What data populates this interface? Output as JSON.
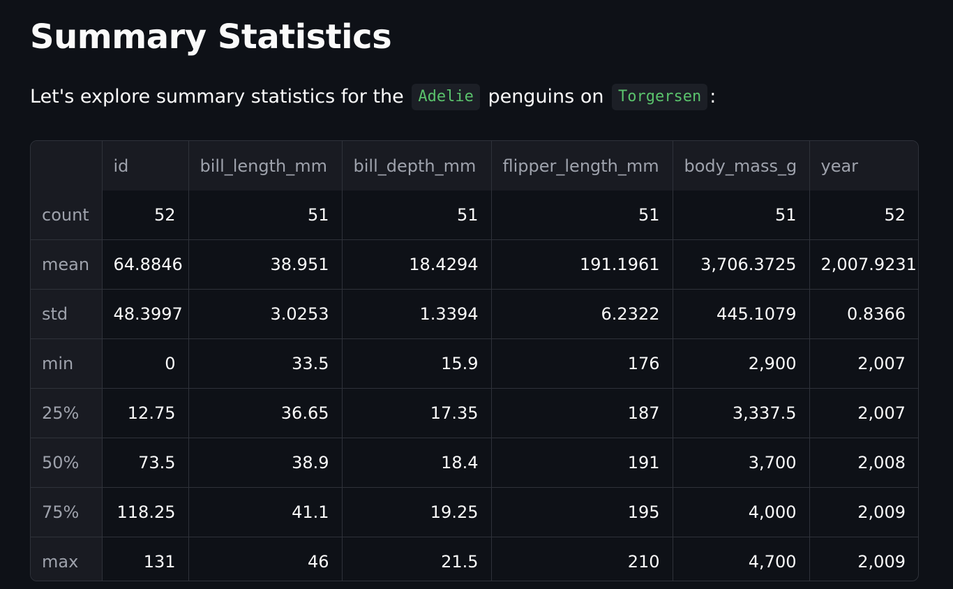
{
  "page": {
    "title": "Summary Statistics",
    "intro": {
      "prefix": "Let's explore summary statistics for the",
      "species": "Adelie",
      "middle": "penguins on",
      "island": "Torgersen",
      "suffix": ":"
    }
  },
  "colors": {
    "background": "#0e1117",
    "chip_text": "#5ac26c",
    "chip_background": "#1c1f26",
    "header_background": "#191b22",
    "grid_line": "#2f323a"
  },
  "table": {
    "columns": [
      "",
      "id",
      "bill_length_mm",
      "bill_depth_mm",
      "flipper_length_mm",
      "body_mass_g",
      "year"
    ],
    "rows": [
      {
        "label": "count",
        "values": [
          "52",
          "51",
          "51",
          "51",
          "51",
          "52"
        ]
      },
      {
        "label": "mean",
        "values": [
          "64.8846",
          "38.951",
          "18.4294",
          "191.1961",
          "3,706.3725",
          "2,007.9231"
        ]
      },
      {
        "label": "std",
        "values": [
          "48.3997",
          "3.0253",
          "1.3394",
          "6.2322",
          "445.1079",
          "0.8366"
        ]
      },
      {
        "label": "min",
        "values": [
          "0",
          "33.5",
          "15.9",
          "176",
          "2,900",
          "2,007"
        ]
      },
      {
        "label": "25%",
        "values": [
          "12.75",
          "36.65",
          "17.35",
          "187",
          "3,337.5",
          "2,007"
        ]
      },
      {
        "label": "50%",
        "values": [
          "73.5",
          "38.9",
          "18.4",
          "191",
          "3,700",
          "2,008"
        ]
      },
      {
        "label": "75%",
        "values": [
          "118.25",
          "41.1",
          "19.25",
          "195",
          "4,000",
          "2,009"
        ]
      },
      {
        "label": "max",
        "values": [
          "131",
          "46",
          "21.5",
          "210",
          "4,700",
          "2,009"
        ]
      }
    ]
  }
}
